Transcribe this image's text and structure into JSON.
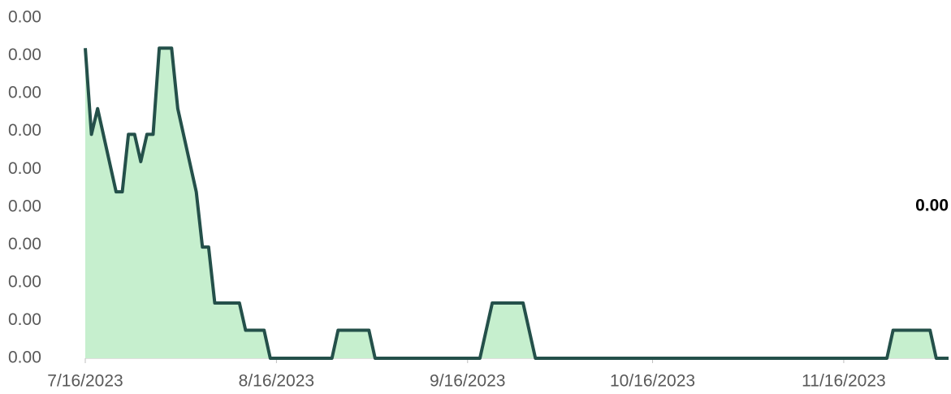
{
  "chart_data": {
    "type": "area",
    "annotation": "0.00",
    "x": [
      "7/16/2023",
      "7/17/2023",
      "7/18/2023",
      "7/21/2023",
      "7/22/2023",
      "7/23/2023",
      "7/24/2023",
      "7/25/2023",
      "7/26/2023",
      "7/27/2023",
      "7/28/2023",
      "7/30/2023",
      "7/31/2023",
      "8/3/2023",
      "8/4/2023",
      "8/5/2023",
      "8/6/2023",
      "8/10/2023",
      "8/11/2023",
      "8/14/2023",
      "8/15/2023",
      "8/25/2023",
      "8/26/2023",
      "8/31/2023",
      "9/1/2023",
      "9/18/2023",
      "9/20/2023",
      "9/25/2023",
      "9/27/2023",
      "11/23/2023",
      "11/24/2023",
      "11/30/2023",
      "12/1/2023",
      "12/3/2023"
    ],
    "series": [
      {
        "color": "#24504a",
        "fill": "#c6efce",
        "values": [
          0.0041,
          0.00296,
          0.0033,
          0.0022,
          0.0022,
          0.00296,
          0.00296,
          0.0026,
          0.00296,
          0.00296,
          0.0041,
          0.0041,
          0.0033,
          0.0022,
          0.00147,
          0.00147,
          0.00073,
          0.00073,
          0.00037,
          0.00037,
          0,
          0,
          0.00037,
          0.00037,
          0,
          0,
          0.00073,
          0.00073,
          0,
          0,
          0.00037,
          0.00037,
          0,
          0
        ]
      }
    ],
    "xlim": [
      "7/16/2023",
      "12/3/2023"
    ],
    "xticks": [
      "7/16/2023",
      "8/16/2023",
      "9/16/2023",
      "10/16/2023",
      "11/16/2023"
    ],
    "ylim": [
      0,
      0.0045
    ],
    "yticks": [
      {
        "value": 0,
        "label": "0.00"
      },
      {
        "value": 0.0005,
        "label": "0.00"
      },
      {
        "value": 0.001,
        "label": "0.00"
      },
      {
        "value": 0.0015,
        "label": "0.00"
      },
      {
        "value": 0.002,
        "label": "0.00"
      },
      {
        "value": 0.0025,
        "label": "0.00"
      },
      {
        "value": 0.003,
        "label": "0.00"
      },
      {
        "value": 0.0035,
        "label": "0.00"
      },
      {
        "value": 0.004,
        "label": "0.00"
      },
      {
        "value": 0.0045,
        "label": "0.00"
      }
    ],
    "grid": false
  }
}
